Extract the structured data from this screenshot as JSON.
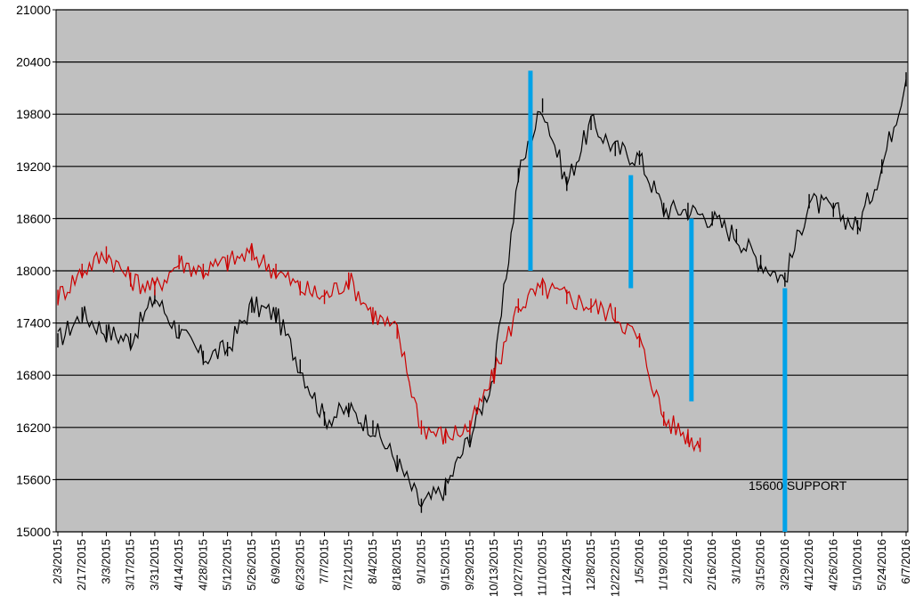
{
  "chart_data": {
    "type": "line",
    "title": "",
    "xlabel": "",
    "ylabel": "",
    "ylim": [
      15000,
      21000
    ],
    "y_ticks": [
      15000,
      15600,
      16200,
      16800,
      17400,
      18000,
      18600,
      19200,
      19800,
      20400,
      21000
    ],
    "y_tick_labels": [
      "15000",
      "15600",
      "16200",
      "16800",
      "17400",
      "18000",
      "18600",
      "19200",
      "19800",
      "20400",
      "21000"
    ],
    "x_tick_labels": [
      "2/3/2015",
      "2/17/2015",
      "3/3/2015",
      "3/17/2015",
      "3/31/2015",
      "4/14/2015",
      "4/28/2015",
      "5/12/2015",
      "5/26/2015",
      "6/9/2015",
      "6/23/2015",
      "7/7/2015",
      "7/21/2015",
      "8/4/2015",
      "8/18/2015",
      "9/1/2015",
      "9/15/2015",
      "9/29/2015",
      "10/13/2015",
      "10/27/2015",
      "11/10/2015",
      "11/24/2015",
      "12/8/2015",
      "12/22/2015",
      "1/5/2016",
      "1/19/2016",
      "2/2/2016",
      "2/16/2016",
      "3/1/2016",
      "3/15/2016",
      "3/29/2016",
      "4/12/2016",
      "4/26/2016",
      "5/10/2016",
      "5/24/2016",
      "6/7/2016"
    ],
    "grid": true,
    "plot_background": "#c0c0c0",
    "series": [
      {
        "color": "#000000",
        "x": [
          "2/3/2015",
          "2/17/2015",
          "3/3/2015",
          "3/17/2015",
          "3/31/2015",
          "4/14/2015",
          "4/28/2015",
          "5/12/2015",
          "5/26/2015",
          "6/9/2015",
          "6/23/2015",
          "7/7/2015",
          "7/21/2015",
          "8/4/2015",
          "8/18/2015",
          "9/1/2015",
          "9/15/2015",
          "9/29/2015",
          "10/13/2015",
          "10/27/2015",
          "11/10/2015",
          "11/24/2015",
          "12/8/2015",
          "12/22/2015",
          "1/5/2016",
          "1/19/2016",
          "2/2/2016",
          "2/16/2016",
          "3/1/2016",
          "3/15/2016",
          "3/29/2016",
          "4/12/2016",
          "4/26/2016",
          "5/10/2016",
          "5/24/2016",
          "6/7/2016"
        ],
        "values": [
          17200,
          17500,
          17300,
          17200,
          17700,
          17300,
          17000,
          17100,
          17600,
          17500,
          16900,
          16300,
          16400,
          16200,
          15800,
          15300,
          15500,
          16100,
          16800,
          19100,
          19900,
          19000,
          19700,
          19400,
          19300,
          18700,
          18700,
          18600,
          18400,
          18100,
          17900,
          18800,
          18700,
          18500,
          19200,
          20200
        ]
      },
      {
        "color": "#cc0000",
        "x": [
          "2/3/2015",
          "2/17/2015",
          "3/3/2015",
          "3/17/2015",
          "3/31/2015",
          "4/14/2015",
          "4/28/2015",
          "5/12/2015",
          "5/26/2015",
          "6/9/2015",
          "6/23/2015",
          "7/7/2015",
          "7/21/2015",
          "8/4/2015",
          "8/18/2015",
          "9/1/2015",
          "9/15/2015",
          "9/29/2015",
          "10/13/2015",
          "10/27/2015",
          "11/10/2015",
          "11/24/2015",
          "12/8/2015",
          "12/22/2015",
          "1/5/2016",
          "1/19/2016",
          "2/2/2016",
          "2/9/2016"
        ],
        "values": [
          17700,
          18000,
          18200,
          17900,
          17800,
          18100,
          18000,
          18100,
          18200,
          18000,
          17800,
          17700,
          17900,
          17500,
          17300,
          16200,
          16100,
          16200,
          16800,
          17600,
          17800,
          17700,
          17600,
          17500,
          17200,
          16300,
          16100,
          16000
        ]
      }
    ],
    "blue_markers": [
      {
        "date": "11/3/2015",
        "top": 20300,
        "bottom": 18000
      },
      {
        "date": "12/31/2015",
        "top": 19100,
        "bottom": 17800
      },
      {
        "date": "2/4/2016",
        "top": 18600,
        "bottom": 16500
      },
      {
        "date": "3/29/2016",
        "top": 17800,
        "bottom": 15000
      }
    ],
    "annotations": [
      {
        "text": "15600 SUPPORT",
        "x": "3/8/2016",
        "y": 15530
      }
    ],
    "colors": {
      "marker": "#00a2e8",
      "grid": "#000000"
    }
  }
}
